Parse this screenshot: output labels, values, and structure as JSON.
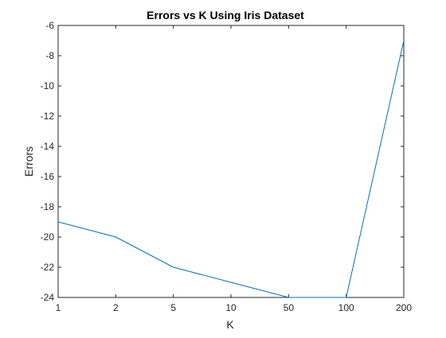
{
  "chart_data": {
    "type": "line",
    "title": "Errors vs K Using Iris Dataset",
    "xlabel": "K",
    "ylabel": "Errors",
    "categories": [
      "1",
      "2",
      "5",
      "10",
      "50",
      "100",
      "200"
    ],
    "series": [
      {
        "values": [
          -19,
          -20,
          -22,
          -23,
          -24,
          -24,
          -7
        ]
      }
    ],
    "ylim": [
      -24,
      -6
    ],
    "yticks": [
      -24,
      -22,
      -20,
      -18,
      -16,
      -14,
      -12,
      -10,
      -8,
      -6
    ],
    "grid": false,
    "legend": "none",
    "colors": {
      "line": "#0072bd",
      "axes": "#262626",
      "background": "#ffffff"
    }
  }
}
